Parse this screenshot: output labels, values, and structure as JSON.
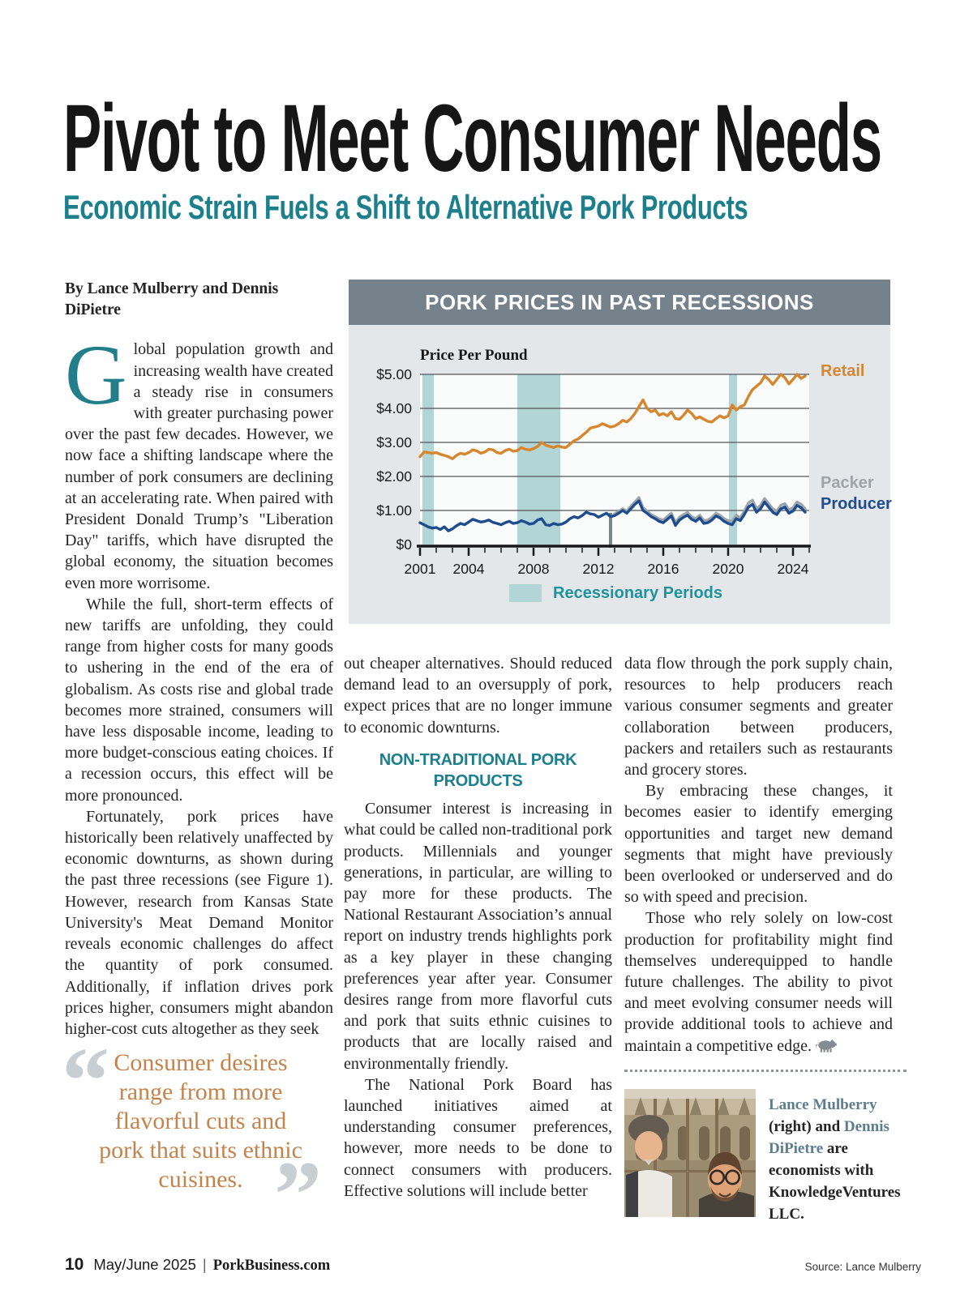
{
  "page": {
    "title": "Pivot to Meet Consumer Needs",
    "subtitle": "Economic Strain Fuels a Shift to Alternative Pork Products",
    "byline": "By Lance Mulberry and Dennis DiPietre",
    "colors": {
      "accent_teal": "#1C7F8C",
      "quote_orange": "#C4834C",
      "chart_header_gray": "#76828B",
      "recession_band_teal": "#B2D5D6",
      "recession_legend_teal": "#1F939B"
    }
  },
  "article": {
    "dropcap": "G",
    "p1_rest": "lobal population growth and increasing wealth have created a steady rise in consumers with greater purchasing power over the past few decades. However, we now face a shifting landscape where the number of pork consumers are declining at an accelerating rate. When paired with President Donald Trump’s \"Liberation Day\" tariffs, which have disrupted the global economy, the situation becomes even more worrisome.",
    "p2": "While the full, short-term effects of new tariffs are unfolding, they could range from higher costs for many goods to ushering in the end of the era of globalism. As costs rise and global trade becomes more strained, consumers will have less disposable income, leading to more budget-conscious eating choices. If a recession occurs, this effect will be more pronounced.",
    "p3": "Fortunately, pork prices have historically been relatively unaffected by economic downturns, as shown during the past three recessions (see Figure 1). However, research from Kansas State University's Meat Demand Monitor reveals economic challenges do affect the quantity of pork consumed. Additionally, if inflation drives pork prices higher, consumers might abandon higher-cost cuts altogether as they seek",
    "p4": "out cheaper alternatives. Should reduced demand lead to an oversupply of pork, expect prices that are no longer immune to economic downturns.",
    "section_heading": "NON-TRADITIONAL PORK PRODUCTS",
    "p5": "Consumer interest is increasing in what could be called non-traditional pork products. Millennials and younger generations, in particular, are willing to pay more for these products. The National Restaurant Association’s annual report on industry trends highlights pork as a key player in these changing preferences year after year. Consumer desires range from more flavorful cuts and pork that suits ethnic cuisines to products that are locally raised and environmentally friendly.",
    "p6": "The National Pork Board has launched initiatives aimed at understanding consumer preferences, however, more needs to be done to connect consumers with producers. Effective solutions will include better",
    "p7": "data flow through the pork supply chain, resources to help producers reach various consumer segments and greater collaboration between producers, packers and retailers such as restaurants and grocery stores.",
    "p8": "By embracing these changes, it becomes easier to identify emerging opportunities and target new demand segments that might have previously been overlooked or underserved and do so with speed and precision.",
    "p9": "Those who rely solely on low-cost production for profitability might find themselves underequipped to handle future challenges. The ability to pivot and meet evolving consumer needs will provide additional tools to achieve and maintain a competitive edge.",
    "pullquote": "Consumer desires range from more flavorful cuts and pork that suits ethnic cuisines."
  },
  "bio": {
    "name1": "Lance Mulberry",
    "rest1": "(right) and",
    "name2": "Dennis DiPietre",
    "rest2": "are economists with KnowledgeVentures LLC."
  },
  "footer": {
    "page_number": "10",
    "issue": "May/June 2025",
    "site": "PorkBusiness.com",
    "source": "Source: Lance Mulberry"
  },
  "chart_data": {
    "type": "line",
    "title": "PORK PRICES IN PAST RECESSIONS",
    "axis_label": "Price Per Pound",
    "legend": "Recessionary Periods",
    "legend_position": "bottom",
    "grid": true,
    "xlim": [
      2001,
      2025
    ],
    "ylim": [
      0,
      5
    ],
    "xlabel_ticks": [
      2001,
      2004,
      2008,
      2012,
      2016,
      2020,
      2024
    ],
    "ytick_values": [
      5,
      4,
      3,
      2,
      1,
      0
    ],
    "ylabel_ticks": [
      "$5.00",
      "$4.00",
      "$3.00",
      "$2.00",
      "$1.00",
      "$0"
    ],
    "x_start": 2001.0,
    "x_step": 0.25,
    "band_color": "#B2D5D6",
    "recession_bands": [
      [
        2001.15,
        2001.85
      ],
      [
        2007.0,
        2009.65
      ],
      [
        2020.05,
        2020.55
      ]
    ],
    "divider_x": 2012.75,
    "series": [
      {
        "name": "Retail",
        "color": "#D6862E",
        "values": [
          2.58,
          2.72,
          2.7,
          2.68,
          2.7,
          2.65,
          2.62,
          2.58,
          2.52,
          2.62,
          2.68,
          2.65,
          2.7,
          2.78,
          2.75,
          2.68,
          2.72,
          2.8,
          2.78,
          2.7,
          2.68,
          2.76,
          2.8,
          2.74,
          2.76,
          2.85,
          2.8,
          2.78,
          2.82,
          2.88,
          3.0,
          2.92,
          2.88,
          2.85,
          2.9,
          2.86,
          2.85,
          2.95,
          3.05,
          3.1,
          3.2,
          3.3,
          3.42,
          3.45,
          3.48,
          3.55,
          3.5,
          3.45,
          3.48,
          3.55,
          3.65,
          3.6,
          3.7,
          3.85,
          4.05,
          4.25,
          4.0,
          3.9,
          3.95,
          3.8,
          3.85,
          3.78,
          3.9,
          3.7,
          3.68,
          3.8,
          3.95,
          3.85,
          3.7,
          3.75,
          3.68,
          3.62,
          3.6,
          3.7,
          3.78,
          3.72,
          3.78,
          4.1,
          3.95,
          4.05,
          4.1,
          4.35,
          4.55,
          4.65,
          4.75,
          4.95,
          4.85,
          4.7,
          4.85,
          5.0,
          4.9,
          4.72,
          4.85,
          5.0,
          4.88,
          4.95
        ]
      },
      {
        "name": "Packer",
        "color": "#9EA5AA",
        "x_start": 2013.0,
        "values": [
          0.9,
          0.97,
          1.05,
          0.98,
          1.12,
          1.25,
          1.38,
          1.08,
          0.98,
          0.88,
          0.82,
          0.75,
          0.72,
          0.82,
          0.92,
          0.64,
          0.8,
          0.88,
          0.94,
          0.82,
          0.76,
          0.86,
          0.7,
          0.72,
          0.8,
          0.92,
          0.86,
          0.76,
          0.7,
          0.68,
          0.86,
          0.78,
          0.98,
          1.22,
          1.3,
          1.05,
          1.15,
          1.35,
          1.2,
          1.05,
          0.98,
          1.15,
          1.2,
          1.02,
          1.08,
          1.25,
          1.18,
          1.05
        ]
      },
      {
        "name": "Producer",
        "color": "#1E4C8F",
        "values": [
          0.64,
          0.58,
          0.52,
          0.48,
          0.5,
          0.44,
          0.52,
          0.4,
          0.46,
          0.55,
          0.62,
          0.58,
          0.66,
          0.74,
          0.7,
          0.66,
          0.68,
          0.72,
          0.65,
          0.62,
          0.58,
          0.64,
          0.68,
          0.62,
          0.64,
          0.7,
          0.66,
          0.6,
          0.62,
          0.72,
          0.76,
          0.58,
          0.56,
          0.62,
          0.58,
          0.6,
          0.66,
          0.76,
          0.82,
          0.78,
          0.85,
          0.95,
          0.9,
          0.88,
          0.8,
          0.86,
          0.92,
          0.82,
          0.85,
          0.92,
          1.0,
          0.92,
          1.05,
          1.18,
          1.28,
          1.0,
          0.92,
          0.82,
          0.76,
          0.68,
          0.64,
          0.74,
          0.84,
          0.56,
          0.72,
          0.8,
          0.86,
          0.74,
          0.68,
          0.78,
          0.62,
          0.64,
          0.72,
          0.84,
          0.78,
          0.68,
          0.62,
          0.58,
          0.76,
          0.7,
          0.88,
          1.1,
          1.18,
          0.95,
          1.05,
          1.25,
          1.1,
          0.95,
          0.88,
          1.05,
          1.1,
          0.92,
          0.98,
          1.15,
          1.08,
          0.95
        ]
      }
    ]
  }
}
